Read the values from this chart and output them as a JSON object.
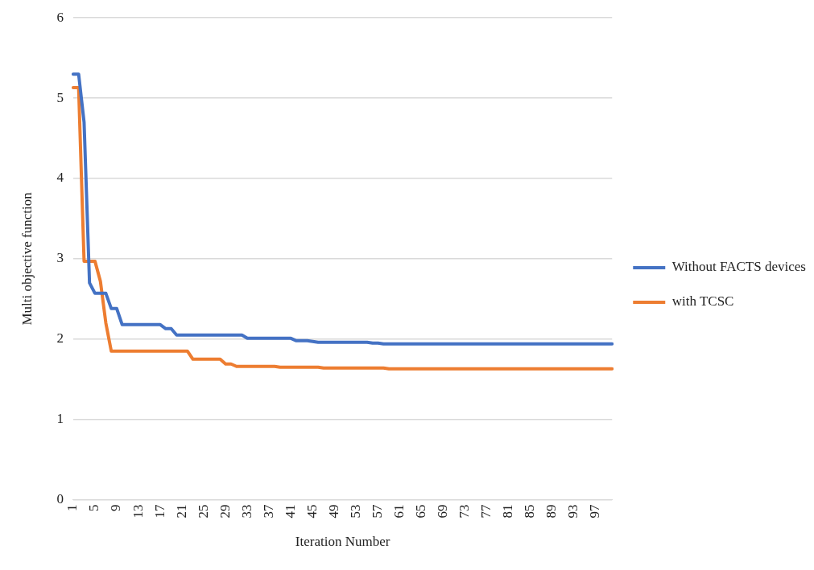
{
  "chart_data": {
    "type": "line",
    "xlabel": "Iteration Number",
    "ylabel": "Multi objective function",
    "categories": [
      "1",
      null,
      null,
      null,
      "5",
      null,
      null,
      null,
      "9",
      null,
      null,
      null,
      "13",
      null,
      null,
      null,
      "17",
      null,
      null,
      null,
      "21",
      null,
      null,
      null,
      "25",
      null,
      null,
      null,
      "29",
      null,
      null,
      null,
      "33",
      null,
      null,
      null,
      "37",
      null,
      null,
      null,
      "41",
      null,
      null,
      null,
      "45",
      null,
      null,
      null,
      "49",
      null,
      null,
      null,
      "53",
      null,
      null,
      null,
      "57",
      null,
      null,
      null,
      "61",
      null,
      null,
      null,
      "65",
      null,
      null,
      null,
      "69",
      null,
      null,
      null,
      "73",
      null,
      null,
      null,
      "77",
      null,
      null,
      null,
      "81",
      null,
      null,
      null,
      "85",
      null,
      null,
      null,
      "89",
      null,
      null,
      null,
      "93",
      null,
      null,
      null,
      "97",
      null,
      null,
      null
    ],
    "series": [
      {
        "name": "Without FACTS devices",
        "color": "#4472c4",
        "values": [
          5.3,
          5.3,
          4.7,
          2.7,
          2.57,
          2.57,
          2.57,
          2.38,
          2.38,
          2.18,
          2.18,
          2.18,
          2.18,
          2.18,
          2.18,
          2.18,
          2.18,
          2.13,
          2.13,
          2.05,
          2.05,
          2.05,
          2.05,
          2.05,
          2.05,
          2.05,
          2.05,
          2.05,
          2.05,
          2.05,
          2.05,
          2.05,
          2.01,
          2.01,
          2.01,
          2.01,
          2.01,
          2.01,
          2.01,
          2.01,
          2.01,
          1.98,
          1.98,
          1.98,
          1.97,
          1.96,
          1.96,
          1.96,
          1.96,
          1.96,
          1.96,
          1.96,
          1.96,
          1.96,
          1.96,
          1.95,
          1.95,
          1.94,
          1.94,
          1.94,
          1.94,
          1.94,
          1.94,
          1.94,
          1.94,
          1.94,
          1.94,
          1.94,
          1.94,
          1.94,
          1.94,
          1.94,
          1.94,
          1.94,
          1.94,
          1.94,
          1.94,
          1.94,
          1.94,
          1.94,
          1.94,
          1.94,
          1.94,
          1.94,
          1.94,
          1.94,
          1.94,
          1.94,
          1.94,
          1.94,
          1.94,
          1.94,
          1.94,
          1.94,
          1.94,
          1.94,
          1.94,
          1.94,
          1.94,
          1.94
        ]
      },
      {
        "name": "with TCSC",
        "color": "#ed7d31",
        "values": [
          5.13,
          5.13,
          2.97,
          2.97,
          2.97,
          2.72,
          2.2,
          1.85,
          1.85,
          1.85,
          1.85,
          1.85,
          1.85,
          1.85,
          1.85,
          1.85,
          1.85,
          1.85,
          1.85,
          1.85,
          1.85,
          1.85,
          1.75,
          1.75,
          1.75,
          1.75,
          1.75,
          1.75,
          1.69,
          1.69,
          1.66,
          1.66,
          1.66,
          1.66,
          1.66,
          1.66,
          1.66,
          1.66,
          1.65,
          1.65,
          1.65,
          1.65,
          1.65,
          1.65,
          1.65,
          1.65,
          1.64,
          1.64,
          1.64,
          1.64,
          1.64,
          1.64,
          1.64,
          1.64,
          1.64,
          1.64,
          1.64,
          1.64,
          1.63,
          1.63,
          1.63,
          1.63,
          1.63,
          1.63,
          1.63,
          1.63,
          1.63,
          1.63,
          1.63,
          1.63,
          1.63,
          1.63,
          1.63,
          1.63,
          1.63,
          1.63,
          1.63,
          1.63,
          1.63,
          1.63,
          1.63,
          1.63,
          1.63,
          1.63,
          1.63,
          1.63,
          1.63,
          1.63,
          1.63,
          1.63,
          1.63,
          1.63,
          1.63,
          1.63,
          1.63,
          1.63,
          1.63,
          1.63,
          1.63,
          1.63
        ]
      }
    ],
    "ylim": [
      0,
      6
    ],
    "yticks": [
      0,
      1,
      2,
      3,
      4,
      5,
      6
    ],
    "grid": "y",
    "legend": "right",
    "marker": "none",
    "line_style": "solid"
  }
}
